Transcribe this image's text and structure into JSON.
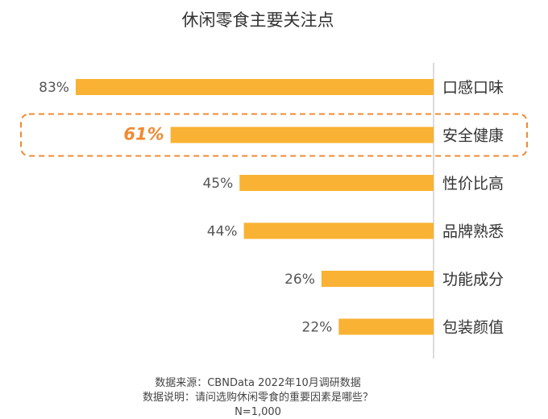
{
  "chart_data": {
    "type": "bar",
    "orientation": "horizontal",
    "title": "休闲零食主要关注点",
    "categories": [
      "口感口味",
      "安全健康",
      "性价比高",
      "品牌熟悉",
      "功能成分",
      "包装颜值"
    ],
    "values": [
      83,
      61,
      45,
      44,
      26,
      22
    ],
    "value_labels": [
      "83%",
      "61%",
      "45%",
      "44%",
      "26%",
      "22%"
    ],
    "xlim": [
      0,
      100
    ],
    "highlight_category": "安全健康",
    "grid": false,
    "legend": "none",
    "bar_color": "#f9b233",
    "highlight_color": "#f08a32"
  },
  "notes": {
    "source": "数据来源：CBNData 2022年10月调研数据",
    "question": "数据说明：请问选购休闲零食的重要因素是哪些？",
    "sample": "N=1,000"
  }
}
